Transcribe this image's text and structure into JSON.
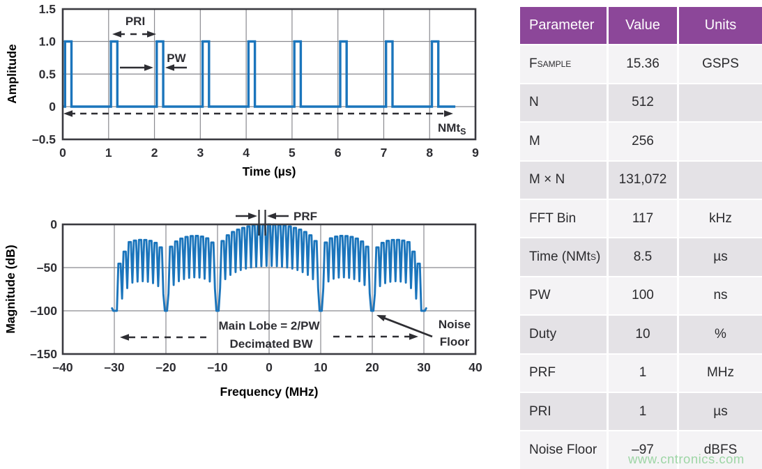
{
  "colors": {
    "signal_blue": "#1b75bc",
    "header_purple": "#8c4799",
    "row_light": "#f4f3f5",
    "row_dark": "#e4e2e6",
    "grid_gray": "#8a8a8f",
    "axis_dark": "#3a3a40",
    "chart_text": "#2e2e33",
    "watermark_green": "#8ed098"
  },
  "chart_data": [
    {
      "type": "line",
      "id": "pulse-train-time-domain",
      "xlabel": "Time (µs)",
      "ylabel": "Amplitude",
      "xlim": [
        0,
        9
      ],
      "ylim": [
        -0.5,
        1.5
      ],
      "xticks": [
        0,
        1,
        2,
        3,
        4,
        5,
        6,
        7,
        8,
        9
      ],
      "xtick_labels": [
        "0",
        "1",
        "2",
        "3",
        "4",
        "5",
        "6",
        "7",
        "8",
        "9"
      ],
      "yticks": [
        1.5,
        1.0,
        0.5,
        0,
        -0.5
      ],
      "ytick_labels": [
        "1.5",
        "1.0",
        "0.5",
        "0",
        "–0.5"
      ],
      "grid": true,
      "series": [
        {
          "name": "pulse-train",
          "amplitude": 1.0,
          "baseline": 0,
          "pulse_period_us": 1,
          "pulse_rise_times_us": [
            0.05,
            1.05,
            2.05,
            3.05,
            4.05,
            5.05,
            6.05,
            7.05,
            8.05
          ],
          "pulse_width_plotted_us": 0.14,
          "signal_end_us": 8.56
        }
      ],
      "annotations": {
        "pri": "PRI",
        "pw": "PW",
        "nmts_main": "NMt",
        "nmts_sub": "S"
      }
    },
    {
      "type": "line",
      "id": "pulse-spectrum-frequency-domain",
      "xlabel": "Frequency (MHz)",
      "ylabel": "Magnitude (dB)",
      "xlim": [
        -40,
        40
      ],
      "ylim": [
        -150,
        0
      ],
      "xticks": [
        -40,
        -30,
        -20,
        -10,
        0,
        10,
        20,
        30,
        40
      ],
      "xtick_labels": [
        "–40",
        "–30",
        "–20",
        "–10",
        "0",
        "10",
        "20",
        "30",
        "40"
      ],
      "yticks": [
        0,
        -50,
        -100,
        -150
      ],
      "ytick_labels": [
        "0",
        "–50",
        "–100",
        "–150"
      ],
      "grid": true,
      "spectrum": {
        "peak_dB": 0,
        "comb_spacing_MHz": 1,
        "pulse_width_us": 0.1,
        "envelope": "20*log10(|sinc(pi*f*PW)|)",
        "envelope_nulls_MHz": [
          -30,
          -20,
          -10,
          10,
          20,
          30
        ],
        "band_edge_MHz": 30.45,
        "noise_floor_dB": -100,
        "notch_depth_dB": 48,
        "edge_rolloff_start_MHz": 27,
        "edge_rolloff_dB_per_MHz": 8
      },
      "annotations": {
        "prf": "PRF",
        "main_lobe": "Main Lobe = 2/PW",
        "decimated_bw": "Decimated BW",
        "noise_floor_line1": "Noise",
        "noise_floor_line2": "Floor"
      }
    }
  ],
  "table": {
    "headers": [
      "Parameter",
      "Value",
      "Units"
    ],
    "rows": [
      {
        "param": "F",
        "param_sub": "SAMPLE",
        "param_rest": "",
        "value": "15.36",
        "units": "GSPS"
      },
      {
        "param": "N",
        "param_sub": "",
        "param_rest": "",
        "value": "512",
        "units": ""
      },
      {
        "param": "M",
        "param_sub": "",
        "param_rest": "",
        "value": "256",
        "units": ""
      },
      {
        "param": "M × N",
        "param_sub": "",
        "param_rest": "",
        "value": "131,072",
        "units": ""
      },
      {
        "param": "FFT Bin",
        "param_sub": "",
        "param_rest": "",
        "value": "117",
        "units": "kHz"
      },
      {
        "param": "Time (NMt",
        "param_sub": "S",
        "param_rest": ")",
        "value": "8.5",
        "units": "µs"
      },
      {
        "param": "PW",
        "param_sub": "",
        "param_rest": "",
        "value": "100",
        "units": "ns"
      },
      {
        "param": "Duty",
        "param_sub": "",
        "param_rest": "",
        "value": "10",
        "units": "%"
      },
      {
        "param": "PRF",
        "param_sub": "",
        "param_rest": "",
        "value": "1",
        "units": "MHz"
      },
      {
        "param": "PRI",
        "param_sub": "",
        "param_rest": "",
        "value": "1",
        "units": "µs"
      },
      {
        "param": "Noise Floor",
        "param_sub": "",
        "param_rest": "",
        "value": "–97",
        "units": "dBFS"
      }
    ]
  },
  "watermark": "www.cntronics.com"
}
